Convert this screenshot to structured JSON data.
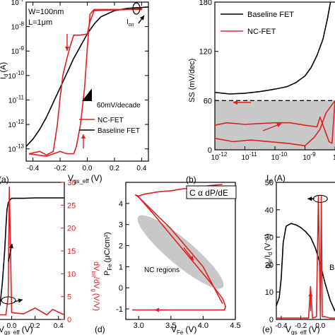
{
  "chart_data": [
    {
      "panel": "(a)",
      "type": "line",
      "xlabel": "V_gs_eff (V)",
      "ylabel": "I_d (A)",
      "xlim": [
        -0.45,
        0.45
      ],
      "ylim_log10": [
        -13.5,
        -7
      ],
      "yscale": "log",
      "xticks": [
        -0.4,
        -0.2,
        0.0,
        0.2,
        0.4
      ],
      "xtick_labels": [
        "-0.4",
        "-0.2",
        "0.0",
        "0.2",
        "0.4"
      ],
      "ytick_labels": [
        "10^-7",
        "10^-8",
        "10^-9",
        "10^-10",
        "10^-11",
        "10^-12",
        "10^-13"
      ],
      "annotations": [
        "W=100nm",
        "L=1μm",
        "I_on",
        "60mV/decade"
      ],
      "legend_position": "bottom-right",
      "series": [
        {
          "name": "Baseline FET",
          "color": "#000000",
          "x": [
            -0.45,
            -0.4,
            -0.35,
            -0.3,
            -0.25,
            -0.2,
            -0.15,
            -0.1,
            -0.05,
            0.0,
            0.05,
            0.1,
            0.2,
            0.3,
            0.45
          ],
          "log10_y": [
            -12.9,
            -12.6,
            -12.2,
            -11.7,
            -11.1,
            -10.5,
            -9.9,
            -9.3,
            -8.8,
            -8.3,
            -7.9,
            -7.6,
            -7.35,
            -7.25,
            -7.2
          ]
        },
        {
          "name": "NC-FET",
          "color": "#e02020",
          "x": [
            -0.43,
            -0.35,
            -0.3,
            -0.25,
            -0.22,
            -0.2,
            -0.18,
            -0.15,
            -0.12,
            -0.1,
            -0.05,
            0.0,
            0.02,
            0.05,
            0.3,
            0.4,
            0.4,
            0.3,
            0.05,
            0.02,
            0.0,
            -0.02,
            -0.05,
            -0.08,
            -0.1,
            -0.15,
            -0.2,
            -0.3,
            -0.43
          ],
          "log10_y": [
            -13.2,
            -13.1,
            -13.25,
            -13.1,
            -12.0,
            -10.9,
            -10.0,
            -9.3,
            -8.7,
            -8.35,
            -8.35,
            -8.3,
            -7.8,
            -7.35,
            -7.3,
            -7.25,
            -7.3,
            -7.3,
            -7.3,
            -7.5,
            -8.9,
            -10.5,
            -12.0,
            -12.9,
            -13.2,
            -13.2,
            -13.1,
            -13.3,
            -13.2
          ]
        }
      ]
    },
    {
      "panel": "(b)",
      "type": "line",
      "xlabel": "I_d (A)",
      "ylabel": "SS (mV/dec)",
      "xscale": "log",
      "xlim_log10": [
        -12,
        -8
      ],
      "ylim": [
        0,
        180
      ],
      "xtick_labels": [
        "10^-12",
        "10^-11",
        "10^-10",
        "10^-9",
        "10^-8"
      ],
      "yticks": [
        0,
        60,
        120,
        180
      ],
      "ytick_labels": [
        "0",
        "60",
        "120",
        "180"
      ],
      "shaded_region": {
        "y_min": 0,
        "y_max": 60
      },
      "reference_line": {
        "y": 60,
        "style": "dashed"
      },
      "legend_position": "top-left",
      "series": [
        {
          "name": "Baseline FET",
          "color": "#000000",
          "log10_x": [
            -12.0,
            -11.5,
            -11.0,
            -10.5,
            -10.0,
            -9.6,
            -9.3,
            -9.0,
            -8.8,
            -8.6,
            -8.4,
            -8.25,
            -8.15
          ],
          "y": [
            70,
            68,
            69,
            71,
            74,
            77,
            82,
            90,
            100,
            115,
            135,
            160,
            180
          ]
        },
        {
          "name": "NC-FET",
          "color": "#e02020",
          "log10_x": [
            -12.0,
            -11.6,
            -11.0,
            -10.5,
            -10.0,
            -9.5,
            -9.0,
            -8.6,
            -8.5,
            -8.3,
            -8.2,
            -8.1,
            -8.0,
            -8.3,
            -8.5,
            -8.7,
            -9.0,
            -9.6,
            -10.2,
            -10.8,
            -11.4,
            -12.0
          ],
          "y": [
            30,
            33,
            31,
            32,
            33,
            33,
            30,
            28,
            40,
            20,
            10,
            8,
            60,
            45,
            25,
            15,
            5,
            8,
            10,
            12,
            10,
            14
          ]
        }
      ]
    },
    {
      "panel": "(c)",
      "type": "line",
      "xlabel": "V_gs_eff (V)",
      "ylabel": "dV_int/dV_g (V/V)",
      "xlim": [
        -0.1,
        0.45
      ],
      "xtick_labels": [
        "0.0",
        "0.2",
        "0.4"
      ],
      "ylim": [
        0,
        30
      ],
      "yticks": [
        0,
        5,
        10,
        15,
        20,
        25,
        30
      ],
      "ytick_labels": [
        "0",
        "5",
        "10",
        "15",
        "20",
        "25",
        "30"
      ],
      "series": [
        {
          "name": "",
          "color": "#000000",
          "x": [
            -0.1,
            -0.08,
            -0.06,
            -0.05,
            -0.04,
            -0.03,
            -0.02,
            0.0,
            0.1,
            0.2,
            0.3,
            0.45
          ],
          "y": [
            3,
            8,
            15,
            20,
            24,
            25.5,
            26,
            26.5,
            26.5,
            26.6,
            26.6,
            26.6
          ]
        },
        {
          "name": "",
          "color": "#e02020",
          "x": [
            -0.1,
            -0.05,
            -0.03,
            -0.02,
            0.0,
            0.1,
            0.2,
            0.3,
            0.35,
            0.45
          ],
          "y": [
            1,
            1,
            5,
            29,
            1.5,
            1.2,
            2.5,
            1.0,
            2.2,
            1.0
          ]
        }
      ]
    },
    {
      "panel": "(d)",
      "type": "line",
      "xlabel": "V_Fe (V)",
      "ylabel": "P_Fe (μC/cm²)",
      "xlim": [
        2.8,
        4.5
      ],
      "ylim": [
        -1.5,
        5
      ],
      "xticks": [
        3.0,
        3.5,
        4.0,
        4.5
      ],
      "xtick_labels": [
        "3.0",
        "3.5",
        "4.0",
        "4.5"
      ],
      "yticks": [
        -1,
        0,
        1,
        2,
        3,
        4
      ],
      "ytick_labels": [
        "-1",
        "0",
        "1",
        "2",
        "3",
        "4"
      ],
      "annotations": [
        "C α dP/dE",
        "NC regions"
      ],
      "series": [
        {
          "name": "",
          "color": "#e02020",
          "x": [
            2.9,
            3.0,
            3.2,
            3.4,
            3.6,
            3.8,
            4.0,
            4.2,
            4.33,
            4.35,
            4.3,
            4.1,
            3.8,
            3.5,
            3.2,
            3.0,
            2.95,
            3.0,
            3.1,
            3.3,
            3.5,
            3.7,
            3.9,
            4.1,
            4.3
          ],
          "y": [
            -1.05,
            -1.05,
            -1.05,
            -1.05,
            -1.05,
            -1.05,
            -1.05,
            -1.05,
            -1.05,
            -0.9,
            -0.5,
            0.3,
            1.4,
            2.5,
            3.6,
            4.3,
            4.4,
            4.35,
            4.45,
            4.55,
            4.6,
            4.7,
            4.75,
            4.85,
            4.9
          ]
        }
      ]
    },
    {
      "panel": "(e)",
      "type": "line",
      "xlabel": "V_gs_eff (V)",
      "ylabel": "g_m/I_d (V^-1)",
      "xlim": [
        -0.45,
        0.15
      ],
      "xtick_labels": [
        "-0.4",
        "-0.2",
        "0.0"
      ],
      "ylim": [
        0,
        50
      ],
      "yticks": [
        0,
        10,
        20,
        30,
        40,
        50
      ],
      "ytick_labels": [
        "0",
        "10",
        "20",
        "30",
        "40",
        "50"
      ],
      "series": [
        {
          "name": "",
          "color": "#000000",
          "x": [
            -0.45,
            -0.42,
            -0.4,
            -0.38,
            -0.35,
            -0.3,
            -0.25,
            -0.2,
            -0.15,
            -0.1,
            -0.05,
            0.0,
            0.05,
            0.1,
            0.15
          ],
          "y": [
            5,
            8,
            15,
            28,
            34,
            35,
            34.5,
            33.5,
            32,
            30,
            26,
            20,
            13,
            7,
            3
          ]
        },
        {
          "name": "",
          "color": "#e02020",
          "x": [
            -0.45,
            -0.2,
            -0.12,
            -0.1,
            -0.08,
            -0.04,
            -0.02,
            0.0,
            0.01,
            0.02,
            0.05,
            0.1,
            0.15
          ],
          "y": [
            0.5,
            0.5,
            0.5,
            12,
            0.5,
            1,
            45,
            1,
            45,
            1,
            1,
            0.5,
            0.5
          ]
        }
      ]
    }
  ],
  "labels": {
    "panel_a": "(a)",
    "panel_b": "(b)",
    "panel_d": "(d)",
    "panel_e": "(e)",
    "a_w": "W=100nm",
    "a_l": "L=1μm",
    "a_ion": "I",
    "a_ion_sub": "on",
    "a_slope": "60mV/decade",
    "a_ylabel": "I",
    "a_ylabel_sub": "d",
    "a_ylabel_unit": "(A)",
    "a_xlabel": "V",
    "a_xlabel_sub": "gs_eff",
    "a_xlabel_unit": "(V)",
    "a_legend_nc": "NC-FET",
    "a_legend_base": "Baseline FET",
    "b_ylabel": "SS (mV/dec)",
    "b_xlabel": "I",
    "b_xlabel_sub": "d",
    "b_xlabel_unit": "(A)",
    "b_legend_base": "Baseline FET",
    "b_legend_nc": "NC-FET",
    "c_ylabel_pre": "dV",
    "c_ylabel_sub1": "int",
    "c_ylabel_mid": "/dV",
    "c_ylabel_sub2": "g",
    "c_ylabel_unit": "(V/V)",
    "c_xlabel": "V",
    "c_xlabel_sub": "gs_eff",
    "c_xlabel_unit": "(V)",
    "d_ylabel": "P",
    "d_ylabel_sub": "Fe",
    "d_ylabel_unit": "(μC/cm²)",
    "d_xlabel": "V",
    "d_xlabel_sub": "Fe",
    "d_xlabel_unit": "(V)",
    "d_box": "C α dP/dE",
    "d_nc": "NC regions",
    "e_ylabel_pre": "g",
    "e_ylabel_sub1": "m",
    "e_ylabel_mid": "/I",
    "e_ylabel_sub2": "d",
    "e_ylabel_unit": "(V⁻¹)",
    "e_xlabel": "V",
    "e_xlabel_sub": "gs_eff",
    "e_xlabel_unit": "(V)",
    "e_partial_label": "B"
  },
  "colors": {
    "nc": "#e02020",
    "baseline": "#000000",
    "shade": "#c8c8c8"
  }
}
